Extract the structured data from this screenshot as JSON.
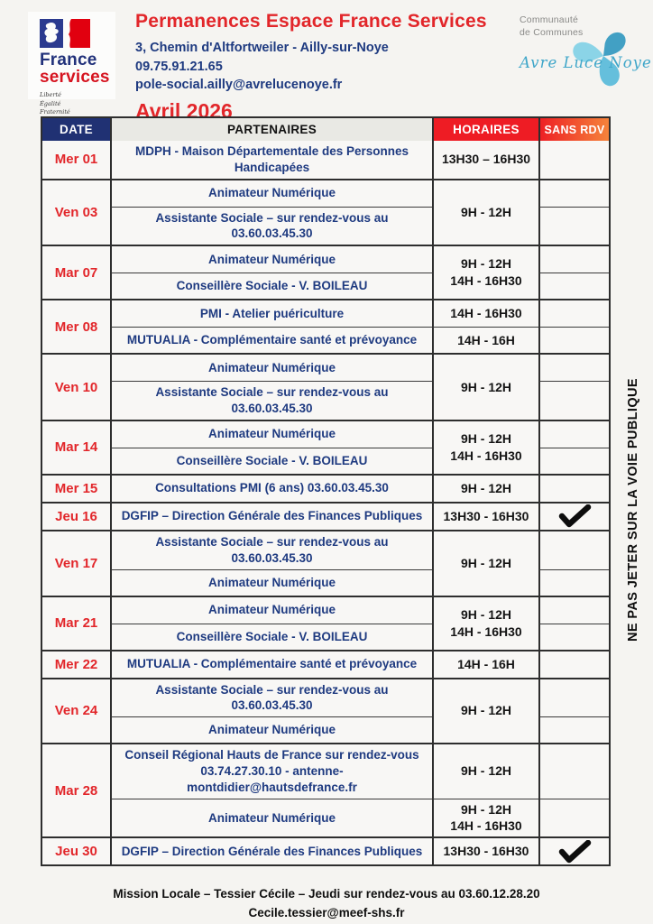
{
  "header": {
    "logo_france": {
      "line1": "France",
      "line2": "services",
      "motto": [
        "Liberté",
        "Égalité",
        "Fraternité"
      ]
    },
    "title": "Permanences Espace France Services",
    "address": "3, Chemin d'Altfortweiler - Ailly-sur-Noye",
    "phone": "09.75.91.21.65",
    "email": "pole-social.ailly@avrelucenoye.fr",
    "month": "Avril 2026",
    "logo_cc": {
      "line1": "Communauté",
      "line2": "de Communes",
      "name": "Avre Luce Noye"
    }
  },
  "table": {
    "headers": {
      "date": "DATE",
      "partners": "PARTENAIRES",
      "hours": "HORAIRES",
      "rdv": "SANS RDV"
    },
    "rows": [
      {
        "date": "Mer 01",
        "subs": [
          {
            "partner": "MDPH - Maison Départementale des Personnes\nHandicapées",
            "hours": "13H30 – 16H30",
            "check": false
          }
        ]
      },
      {
        "date": "Ven 03",
        "merged_hours": "9H - 12H",
        "subs": [
          {
            "partner": "Animateur Numérique",
            "check": false
          },
          {
            "partner": "Assistante Sociale – sur rendez-vous au\n03.60.03.45.30",
            "check": false
          }
        ]
      },
      {
        "date": "Mar 07",
        "merged_hours": "9H - 12H\n14H - 16H30",
        "subs": [
          {
            "partner": "Animateur Numérique",
            "check": false
          },
          {
            "partner": "Conseillère Sociale - V. BOILEAU",
            "check": false
          }
        ]
      },
      {
        "date": "Mer 08",
        "subs": [
          {
            "partner": "PMI - Atelier puériculture",
            "hours": "14H - 16H30",
            "check": false
          },
          {
            "partner": "MUTUALIA - Complémentaire santé et prévoyance",
            "hours": "14H - 16H",
            "check": false
          }
        ]
      },
      {
        "date": "Ven 10",
        "merged_hours": "9H - 12H",
        "subs": [
          {
            "partner": "Animateur Numérique",
            "check": false
          },
          {
            "partner": "Assistante Sociale – sur rendez-vous au\n03.60.03.45.30",
            "check": false
          }
        ]
      },
      {
        "date": "Mar 14",
        "merged_hours": "9H - 12H\n14H - 16H30",
        "subs": [
          {
            "partner": "Animateur Numérique",
            "check": false
          },
          {
            "partner": "Conseillère Sociale - V. BOILEAU",
            "check": false
          }
        ]
      },
      {
        "date": "Mer 15",
        "subs": [
          {
            "partner": "Consultations PMI (6 ans) 03.60.03.45.30",
            "hours": "9H - 12H",
            "check": false
          }
        ]
      },
      {
        "date": "Jeu 16",
        "subs": [
          {
            "partner": "DGFIP – Direction Générale des Finances Publiques",
            "hours": "13H30 - 16H30",
            "check": true
          }
        ]
      },
      {
        "date": "Ven 17",
        "merged_hours": "9H - 12H",
        "subs": [
          {
            "partner": "Assistante Sociale – sur rendez-vous au\n03.60.03.45.30",
            "check": false
          },
          {
            "partner": "Animateur Numérique",
            "check": false
          }
        ]
      },
      {
        "date": "Mar 21",
        "merged_hours": "9H - 12H\n14H - 16H30",
        "subs": [
          {
            "partner": "Animateur Numérique",
            "check": false
          },
          {
            "partner": "Conseillère Sociale - V. BOILEAU",
            "check": false
          }
        ]
      },
      {
        "date": "Mer 22",
        "subs": [
          {
            "partner": "MUTUALIA - Complémentaire santé et prévoyance",
            "hours": "14H - 16H",
            "check": false
          }
        ]
      },
      {
        "date": "Ven 24",
        "merged_hours": "9H - 12H",
        "subs": [
          {
            "partner": "Assistante Sociale – sur rendez-vous au\n03.60.03.45.30",
            "check": false
          },
          {
            "partner": "Animateur Numérique",
            "check": false
          }
        ]
      },
      {
        "date": "Mar 28",
        "subs": [
          {
            "partner": "Conseil Régional Hauts de France sur rendez-vous\n03.74.27.30.10 - antenne-\nmontdidier@hautsdefrance.fr",
            "hours": "9H - 12H",
            "check": false
          },
          {
            "partner": "Animateur Numérique",
            "hours": "9H - 12H\n14H - 16H30",
            "check": false
          }
        ]
      },
      {
        "date": "Jeu 30",
        "subs": [
          {
            "partner": "DGFIP – Direction Générale des Finances Publiques",
            "hours": "13H30 - 16H30",
            "check": true
          }
        ]
      }
    ]
  },
  "side_note": "NE PAS JETER SUR LA VOIE PUBLIQUE",
  "footer": {
    "line1": "Mission Locale – Tessier Cécile – Jeudi sur rendez-vous au 03.60.12.28.20",
    "line2": "Cecile.tessier@meef-shs.fr"
  },
  "colors": {
    "accent_red": "#e2262a",
    "partner_navy": "#1e3a80",
    "header_navy_bg": "#203173",
    "header_red_bg": "#ee1c24",
    "rdv_gradient": [
      "#ee2024",
      "#f5833b"
    ],
    "logo_teal": "#45b1d3",
    "border": "#2e2e2e",
    "paper": "#f5f4f1"
  }
}
